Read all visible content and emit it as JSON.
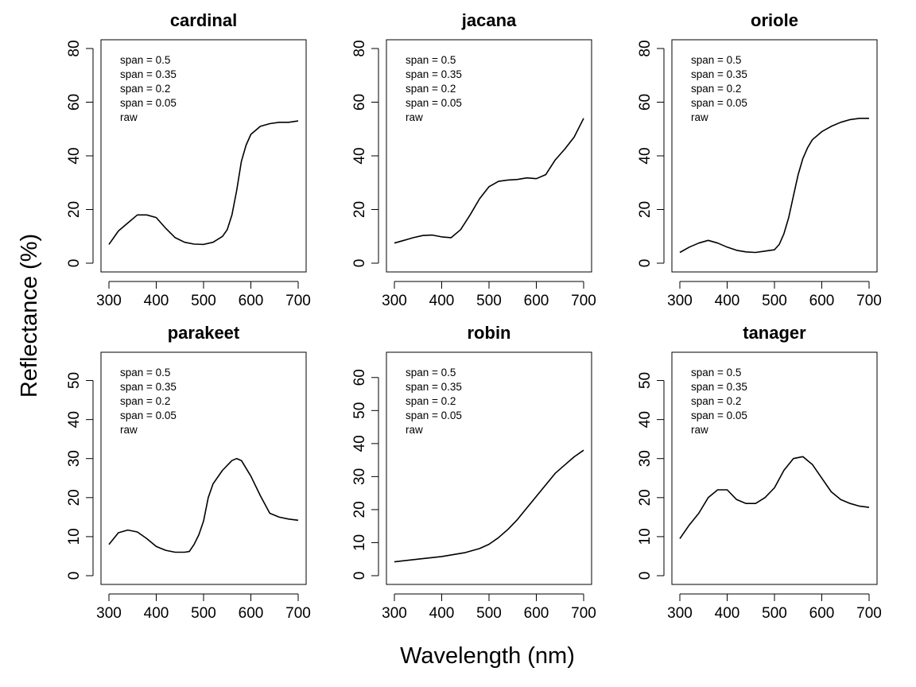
{
  "figure": {
    "xlabel": "Wavelength (nm)",
    "ylabel": "Reflectance (%)"
  },
  "chart_data": [
    {
      "type": "line",
      "title": "cardinal",
      "xlim": [
        300,
        700
      ],
      "ylim": [
        0,
        80
      ],
      "xticks": [
        300,
        400,
        500,
        600,
        700
      ],
      "yticks": [
        0,
        20,
        40,
        60,
        80
      ],
      "legend": [
        "span = 0.5",
        "span = 0.35",
        "span = 0.2",
        "span = 0.05",
        "raw"
      ],
      "legend_position": "top-left",
      "series": [
        {
          "x": [
            300,
            320,
            340,
            360,
            380,
            400,
            420,
            440,
            460,
            480,
            500,
            520,
            540,
            550,
            560,
            570,
            580,
            590,
            600,
            620,
            640,
            660,
            680,
            700
          ],
          "y": [
            7,
            12,
            15,
            18,
            18,
            17,
            13,
            9.5,
            7.8,
            7.1,
            7,
            7.8,
            10,
            12.5,
            18,
            27,
            38,
            44,
            48,
            51,
            52,
            52.5,
            52.5,
            53
          ]
        }
      ]
    },
    {
      "type": "line",
      "title": "jacana",
      "xlim": [
        300,
        700
      ],
      "ylim": [
        0,
        80
      ],
      "xticks": [
        300,
        400,
        500,
        600,
        700
      ],
      "yticks": [
        0,
        20,
        40,
        60,
        80
      ],
      "legend": [
        "span = 0.5",
        "span = 0.35",
        "span = 0.2",
        "span = 0.05",
        "raw"
      ],
      "legend_position": "top-left",
      "series": [
        {
          "x": [
            300,
            320,
            340,
            360,
            380,
            400,
            420,
            440,
            460,
            480,
            500,
            520,
            540,
            560,
            580,
            600,
            620,
            640,
            660,
            680,
            700
          ],
          "y": [
            7.5,
            8.5,
            9.5,
            10.3,
            10.5,
            9.8,
            9.5,
            12.5,
            18,
            24,
            28.5,
            30.5,
            31,
            31.2,
            31.8,
            31.5,
            33,
            38.5,
            42.5,
            47,
            54
          ]
        }
      ]
    },
    {
      "type": "line",
      "title": "oriole",
      "xlim": [
        300,
        700
      ],
      "ylim": [
        0,
        80
      ],
      "xticks": [
        300,
        400,
        500,
        600,
        700
      ],
      "yticks": [
        0,
        20,
        40,
        60,
        80
      ],
      "legend": [
        "span = 0.5",
        "span = 0.35",
        "span = 0.2",
        "span = 0.05",
        "raw"
      ],
      "legend_position": "top-left",
      "series": [
        {
          "x": [
            300,
            320,
            340,
            360,
            380,
            400,
            420,
            440,
            460,
            480,
            500,
            510,
            520,
            530,
            540,
            550,
            560,
            570,
            580,
            600,
            620,
            640,
            660,
            680,
            700
          ],
          "y": [
            4,
            6,
            7.5,
            8.5,
            7.5,
            6,
            4.8,
            4.2,
            4,
            4.5,
            5,
            7,
            11,
            17,
            25,
            33,
            39,
            43,
            46,
            49,
            51,
            52.5,
            53.5,
            54,
            54
          ]
        }
      ]
    },
    {
      "type": "line",
      "title": "parakeet",
      "xlim": [
        300,
        700
      ],
      "ylim": [
        0,
        55
      ],
      "xticks": [
        300,
        400,
        500,
        600,
        700
      ],
      "yticks": [
        0,
        10,
        20,
        30,
        40,
        50
      ],
      "legend": [
        "span = 0.5",
        "span = 0.35",
        "span = 0.2",
        "span = 0.05",
        "raw"
      ],
      "legend_position": "top-left",
      "series": [
        {
          "x": [
            300,
            320,
            340,
            360,
            380,
            400,
            420,
            440,
            460,
            470,
            480,
            490,
            500,
            510,
            520,
            540,
            560,
            570,
            580,
            600,
            620,
            640,
            660,
            680,
            700
          ],
          "y": [
            8,
            11,
            11.7,
            11.2,
            9.5,
            7.5,
            6.5,
            6,
            6,
            6.2,
            8,
            10.5,
            14,
            20,
            23.5,
            27,
            29.5,
            30,
            29.5,
            25.5,
            20.5,
            16,
            15,
            14.5,
            14.2
          ]
        }
      ]
    },
    {
      "type": "line",
      "title": "robin",
      "xlim": [
        300,
        700
      ],
      "ylim": [
        0,
        65
      ],
      "xticks": [
        300,
        400,
        500,
        600,
        700
      ],
      "yticks": [
        0,
        10,
        20,
        30,
        40,
        50,
        60
      ],
      "legend": [
        "span = 0.5",
        "span = 0.35",
        "span = 0.2",
        "span = 0.05",
        "raw"
      ],
      "legend_position": "top-left",
      "series": [
        {
          "x": [
            300,
            350,
            400,
            450,
            480,
            500,
            520,
            540,
            560,
            580,
            600,
            620,
            640,
            660,
            680,
            700
          ],
          "y": [
            4.2,
            5,
            5.8,
            7,
            8.2,
            9.5,
            11.5,
            14,
            17,
            20.5,
            24,
            27.5,
            31,
            33.5,
            36,
            38
          ]
        }
      ]
    },
    {
      "type": "line",
      "title": "tanager",
      "xlim": [
        300,
        700
      ],
      "ylim": [
        0,
        55
      ],
      "xticks": [
        300,
        400,
        500,
        600,
        700
      ],
      "yticks": [
        0,
        10,
        20,
        30,
        40,
        50
      ],
      "legend": [
        "span = 0.5",
        "span = 0.35",
        "span = 0.2",
        "span = 0.05",
        "raw"
      ],
      "legend_position": "top-left",
      "series": [
        {
          "x": [
            300,
            320,
            340,
            360,
            380,
            400,
            420,
            440,
            460,
            480,
            500,
            520,
            540,
            560,
            580,
            600,
            620,
            640,
            660,
            680,
            700
          ],
          "y": [
            9.5,
            13,
            16,
            20,
            22,
            22,
            19.5,
            18.5,
            18.5,
            20,
            22.5,
            27,
            30,
            30.5,
            28.5,
            25,
            21.5,
            19.5,
            18.5,
            17.8,
            17.5
          ]
        }
      ]
    }
  ]
}
